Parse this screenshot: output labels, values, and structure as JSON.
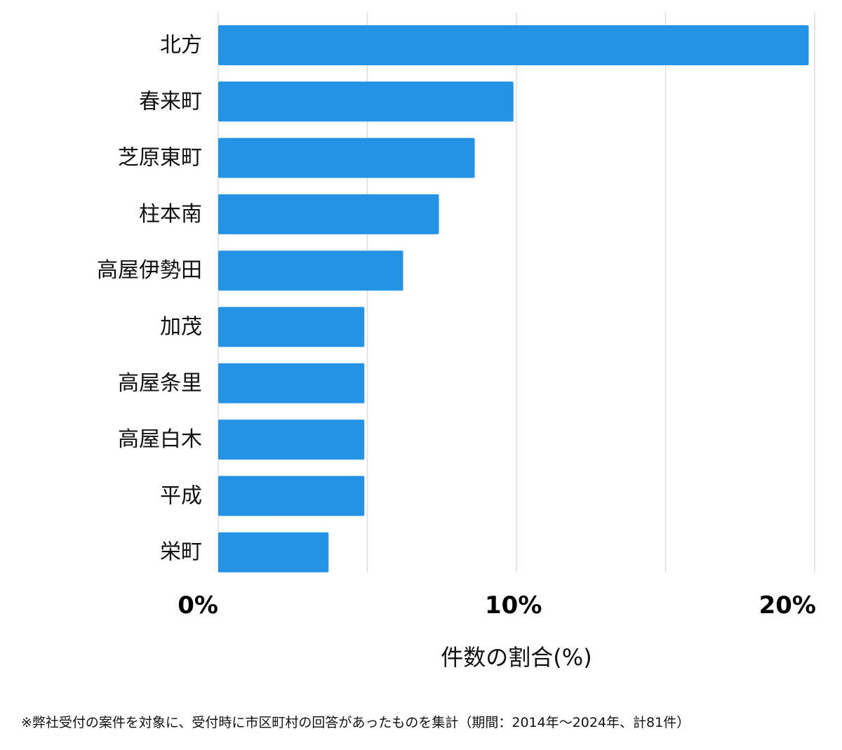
{
  "chart_data": {
    "type": "bar",
    "orientation": "horizontal",
    "categories": [
      "北方",
      "春来町",
      "芝原東町",
      "柱本南",
      "高屋伊勢田",
      "加茂",
      "高屋条里",
      "高屋白木",
      "平成",
      "栄町"
    ],
    "values": [
      19.8,
      9.9,
      8.6,
      7.4,
      6.2,
      4.9,
      4.9,
      4.9,
      4.9,
      3.7
    ],
    "xlim": [
      0,
      20
    ],
    "xticks": [
      0,
      10,
      20
    ],
    "xtick_labels": [
      "0%",
      "10%",
      "20%"
    ],
    "gridlines_at": [
      0,
      5,
      10,
      15,
      20
    ],
    "xlabel": "件数の割合(%)",
    "ylabel": "",
    "title": "",
    "grid": true,
    "bar_color": "#2493E6",
    "grid_color": "#DDDDDD"
  },
  "footnote": "※弊社受付の案件を対象に、受付時に市区町村の回答があったものを集計（期間：2014年〜2024年、計81件）"
}
